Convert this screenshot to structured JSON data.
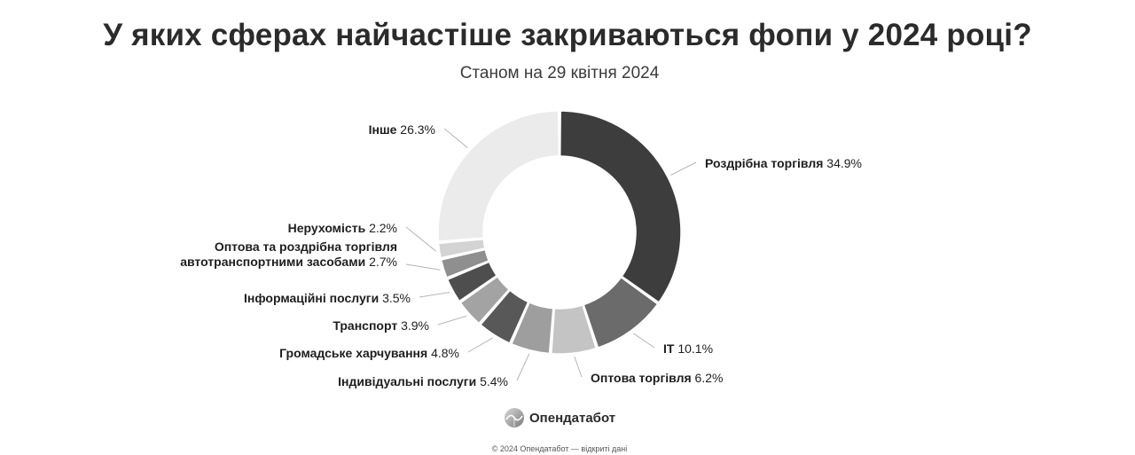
{
  "chart_data": {
    "type": "pie",
    "variant": "donut",
    "title": "У яких сферах найчастіше закриваються фопи у 2024 році?",
    "subtitle": "Станом на 29 квітня 2024",
    "unit": "%",
    "slices": [
      {
        "label": "Роздрібна торгівля",
        "value": 34.9,
        "value_text": "34.9%",
        "color": "#3d3d3d"
      },
      {
        "label": "IT",
        "value": 10.1,
        "value_text": "10.1%",
        "color": "#6b6b6b"
      },
      {
        "label": "Оптова торгівля",
        "value": 6.2,
        "value_text": "6.2%",
        "color": "#c4c4c4"
      },
      {
        "label": "Індивідуальні послуги",
        "value": 5.4,
        "value_text": "5.4%",
        "color": "#9e9e9e"
      },
      {
        "label": "Громадське харчування",
        "value": 4.8,
        "value_text": "4.8%",
        "color": "#585858"
      },
      {
        "label": "Транспорт",
        "value": 3.9,
        "value_text": "3.9%",
        "color": "#a3a3a3"
      },
      {
        "label": "Інформаційні послуги",
        "value": 3.5,
        "value_text": "3.5%",
        "color": "#4e4e4e"
      },
      {
        "label": "Оптова та роздрібна торгівля автотранспортними засобами",
        "label_lines": [
          "Оптова та роздрібна торгівля",
          "автотранспортними засобами"
        ],
        "value": 2.7,
        "value_text": "2.7%",
        "color": "#8f8f8f"
      },
      {
        "label": "Нерухомість",
        "value": 2.2,
        "value_text": "2.2%",
        "color": "#d3d3d3"
      },
      {
        "label": "Інше",
        "value": 26.3,
        "value_text": "26.3%",
        "color": "#ebebeb"
      }
    ],
    "legend": "none",
    "labels": "outside-with-leader-lines"
  },
  "brand": {
    "name": "Опендатабот",
    "logo_icon": "opendatabot-logo-icon"
  },
  "footer": {
    "text": "© 2024 Опендатабот — відкриті дані"
  }
}
